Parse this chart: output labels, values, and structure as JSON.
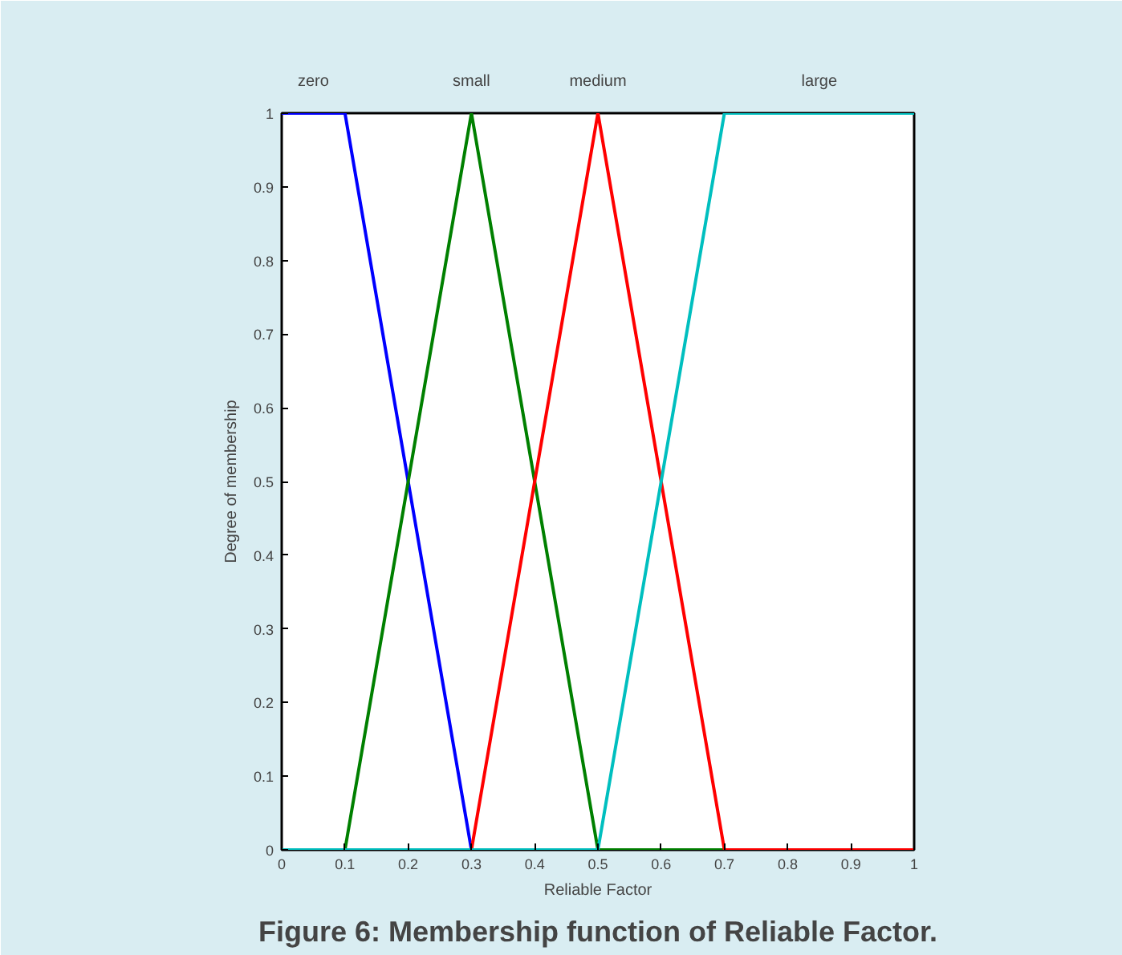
{
  "chart_data": {
    "type": "line",
    "xlabel": "Reliable Factor",
    "ylabel": "Degree of membership",
    "annotations": [
      "Figure 6: Membership function of Reliable Factor."
    ],
    "xlim": [
      0,
      1
    ],
    "ylim": [
      0,
      1
    ],
    "xticks": [
      0,
      0.1,
      0.2,
      0.3,
      0.4,
      0.5,
      0.6,
      0.7,
      0.8,
      0.9,
      1
    ],
    "yticks": [
      0,
      0.1,
      0.2,
      0.3,
      0.4,
      0.5,
      0.6,
      0.7,
      0.8,
      0.9,
      1
    ],
    "grid": false,
    "marker": "none",
    "line_style": "solid",
    "series": [
      {
        "name": "zero",
        "color": "#0000ff",
        "x": [
          0,
          0.1,
          0.3,
          1
        ],
        "values": [
          1,
          1,
          0,
          0
        ]
      },
      {
        "name": "small",
        "color": "#008000",
        "x": [
          0,
          0.1,
          0.3,
          0.5,
          1
        ],
        "values": [
          0,
          0,
          1,
          0,
          0
        ]
      },
      {
        "name": "medium",
        "color": "#ff0000",
        "x": [
          0,
          0.3,
          0.5,
          0.7,
          1
        ],
        "values": [
          0,
          0,
          1,
          0,
          0
        ]
      },
      {
        "name": "large",
        "color": "#00bfbf",
        "x": [
          0,
          0.5,
          0.7,
          1
        ],
        "values": [
          0,
          0,
          1,
          1
        ]
      }
    ]
  }
}
